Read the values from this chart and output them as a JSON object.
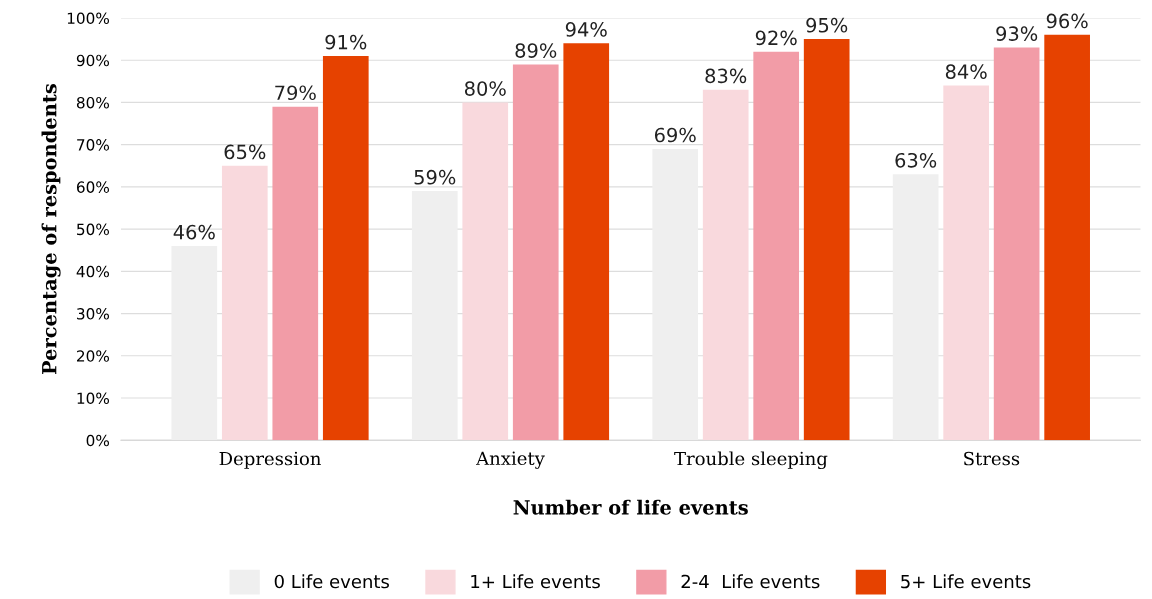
{
  "chart_data": {
    "type": "bar",
    "xlabel": "Number of life events",
    "ylabel": "Percentage of respondents",
    "categories": [
      "Depression",
      "Anxiety",
      "Trouble sleeping",
      "Stress"
    ],
    "series": [
      {
        "name": "0 Life events",
        "color": "#efefef",
        "values": [
          46,
          59,
          69,
          63
        ],
        "value_labels": [
          "46%",
          "59%",
          "69%",
          "63%"
        ]
      },
      {
        "name": "1+ Life events",
        "color": "#f9d9dd",
        "values": [
          65,
          80,
          83,
          84
        ],
        "value_labels": [
          "65%",
          "80%",
          "83%",
          "84%"
        ]
      },
      {
        "name": "2-4  Life events",
        "color": "#f29ca7",
        "values": [
          79,
          89,
          92,
          93
        ],
        "value_labels": [
          "79%",
          "89%",
          "92%",
          "93%"
        ]
      },
      {
        "name": "5+ Life events",
        "color": "#e64200",
        "values": [
          91,
          94,
          95,
          96
        ],
        "value_labels": [
          "91%",
          "94%",
          "95%",
          "96%"
        ]
      }
    ],
    "ylim": [
      0,
      100
    ],
    "yticks": [
      {
        "value": 0,
        "label": "0%"
      },
      {
        "value": 10,
        "label": "10%"
      },
      {
        "value": 20,
        "label": "20%"
      },
      {
        "value": 30,
        "label": "30%"
      },
      {
        "value": 40,
        "label": "40%"
      },
      {
        "value": 50,
        "label": "50%"
      },
      {
        "value": 60,
        "label": "60%"
      },
      {
        "value": 70,
        "label": "70%"
      },
      {
        "value": 80,
        "label": "80%"
      },
      {
        "value": 90,
        "label": "90%"
      },
      {
        "value": 100,
        "label": "100%"
      }
    ],
    "grid": "y",
    "legend": "bottom"
  }
}
